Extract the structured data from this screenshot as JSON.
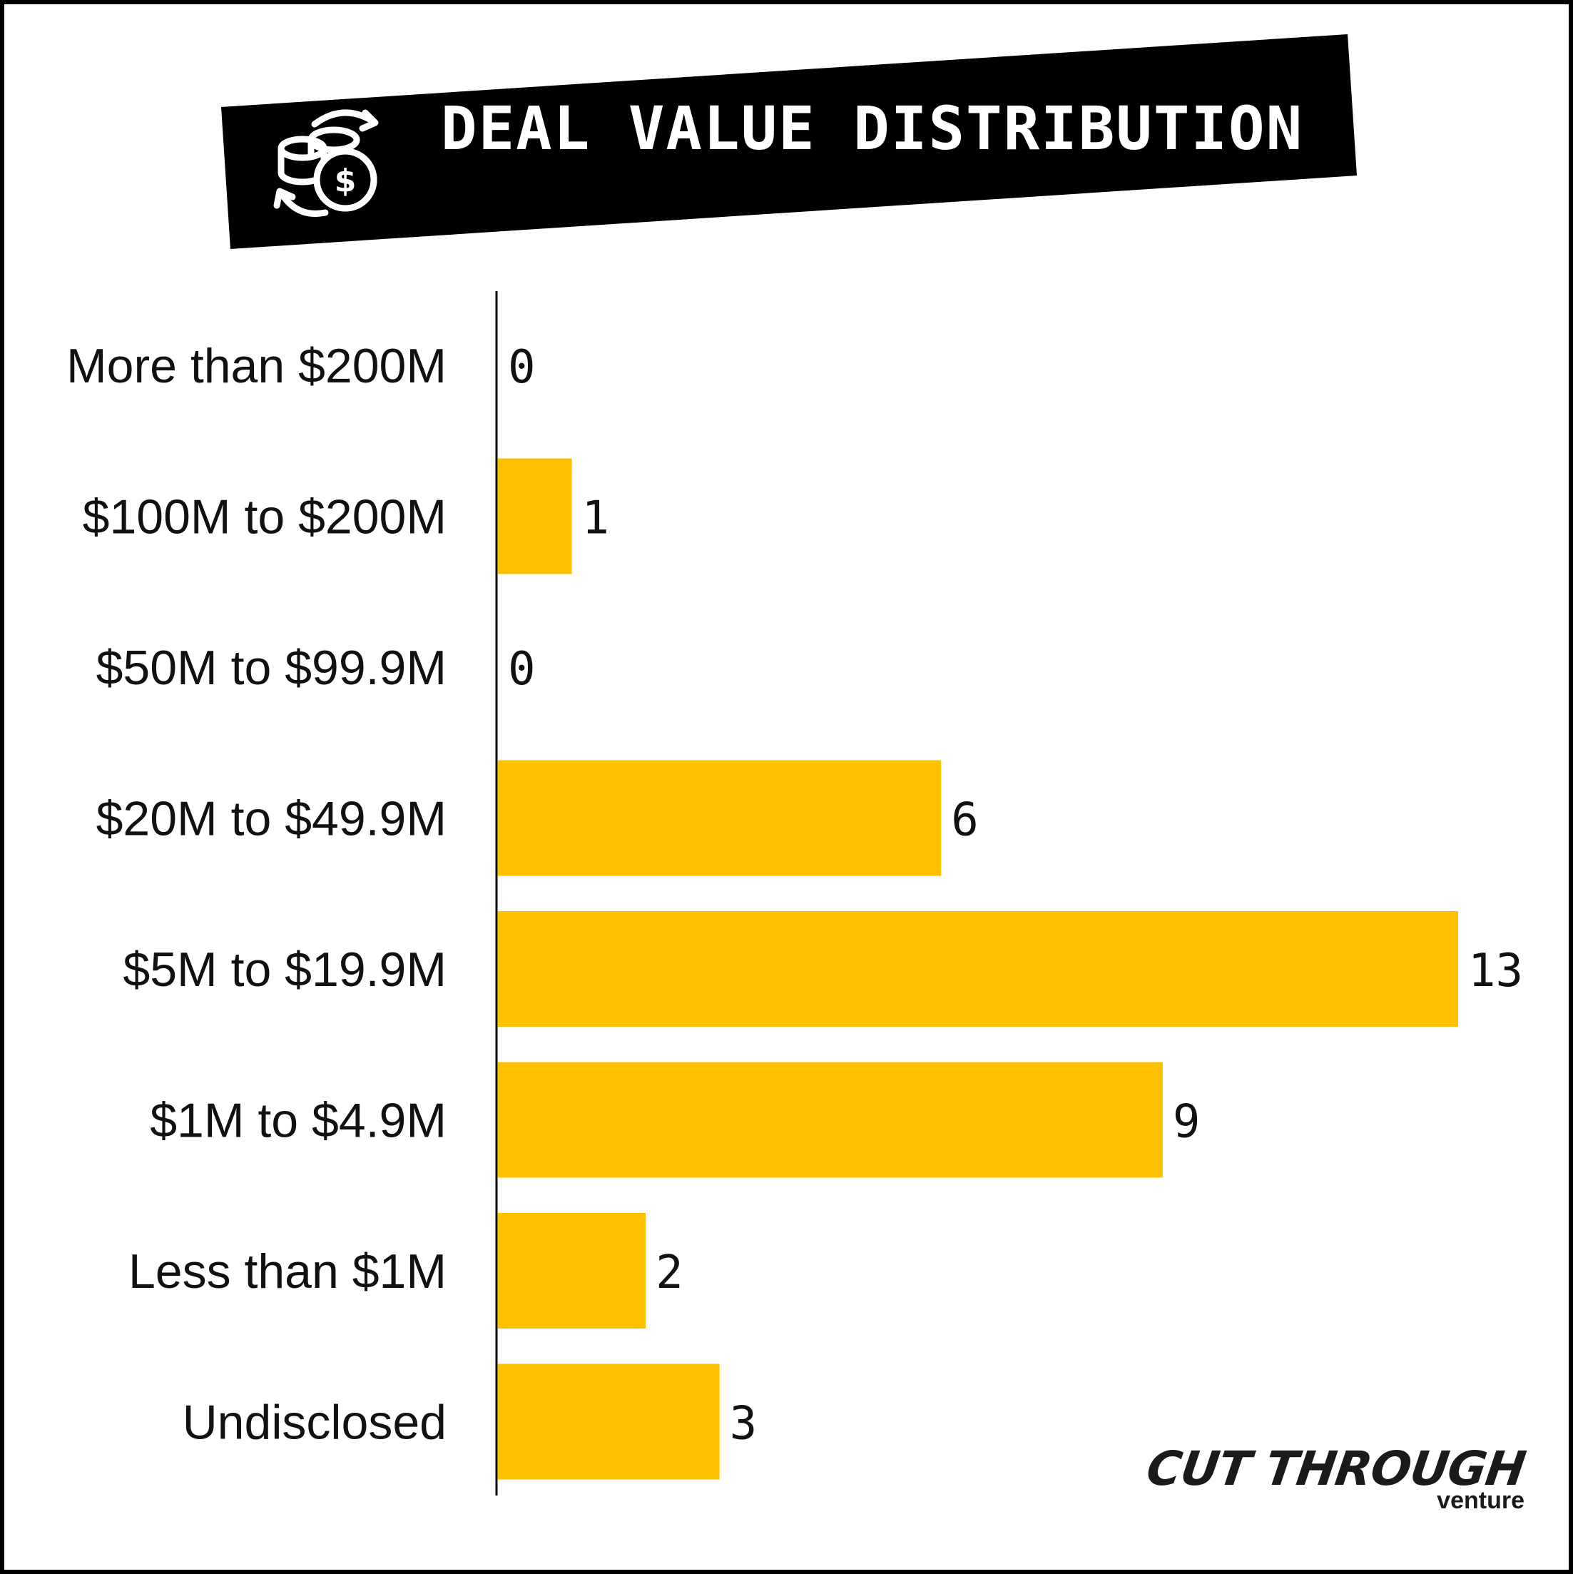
{
  "colors": {
    "bar": "#FFC000",
    "banner": "#000000",
    "text": "#111111"
  },
  "header": {
    "title": "DEAL VALUE DISTRIBUTION",
    "icon": "coins-exchange-icon"
  },
  "chart_data": {
    "type": "bar",
    "orientation": "horizontal",
    "title": "DEAL VALUE DISTRIBUTION",
    "xlabel": "",
    "ylabel": "",
    "categories": [
      "More than $200M",
      "$100M to $200M",
      "$50M to $99.9M",
      "$20M to $49.9M",
      "$5M to $19.9M",
      "$1M to $4.9M",
      "Less than $1M",
      "Undisclosed"
    ],
    "values": [
      0,
      1,
      0,
      6,
      13,
      9,
      2,
      3
    ],
    "xlim": [
      0,
      13
    ],
    "grid": false,
    "legend": "none"
  },
  "branding": {
    "logo_main": "CUT THROUGH",
    "logo_sub": "venture"
  }
}
